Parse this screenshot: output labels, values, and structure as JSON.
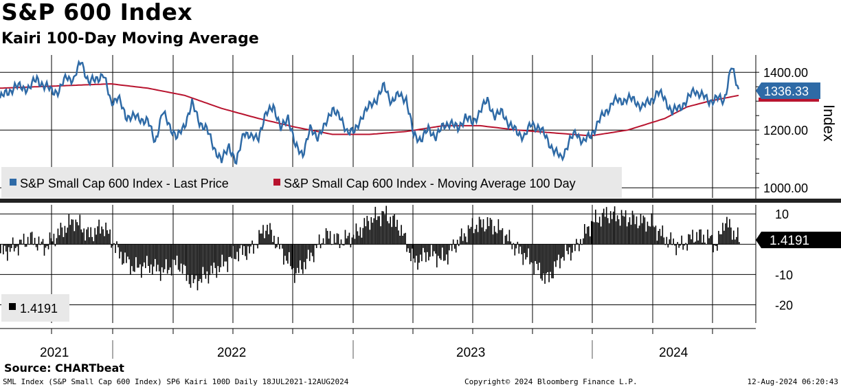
{
  "title": "S&P 600 Index",
  "subtitle": "Kairi 100-Day Moving Average",
  "colors": {
    "price": "#2e6aa6",
    "ma": "#b8132e",
    "kairi": "#000000",
    "grid": "#000000",
    "legend_bg": "#e8e8e8"
  },
  "chart_data": [
    {
      "type": "line",
      "panel": "upper",
      "ylabel": "Index",
      "ylim": [
        960,
        1460
      ],
      "ytick_labels": [
        "1400.00",
        "1200.00",
        "1000.00"
      ],
      "ytick_values": [
        1400,
        1200,
        1000
      ],
      "xlim": [
        "2021-07-18",
        "2024-08-12"
      ],
      "legend": [
        "S&P Small Cap 600 Index - Last Price",
        "S&P Small Cap 600 Index - Moving Average 100 Day"
      ],
      "last_price_label": "1336.33",
      "series": [
        {
          "name": "S&P Small Cap 600 Index - Last Price",
          "t": [
            0.0,
            0.02,
            0.04,
            0.05,
            0.06,
            0.08,
            0.09,
            0.1,
            0.11,
            0.12,
            0.13,
            0.14,
            0.15,
            0.16,
            0.17,
            0.19,
            0.2,
            0.21,
            0.22,
            0.24,
            0.25,
            0.26,
            0.27,
            0.28,
            0.29,
            0.3,
            0.31,
            0.32,
            0.33,
            0.34,
            0.35,
            0.36,
            0.37,
            0.38,
            0.39,
            0.4,
            0.41,
            0.42,
            0.43,
            0.44,
            0.45,
            0.46,
            0.47,
            0.48,
            0.49,
            0.5,
            0.51,
            0.52,
            0.53,
            0.54,
            0.55,
            0.56,
            0.57,
            0.58,
            0.59,
            0.6,
            0.61,
            0.62,
            0.63,
            0.64,
            0.65,
            0.66,
            0.67,
            0.68,
            0.69,
            0.7,
            0.71,
            0.72,
            0.73,
            0.74,
            0.75,
            0.76,
            0.77,
            0.78,
            0.79,
            0.8,
            0.81,
            0.82,
            0.83,
            0.84,
            0.85,
            0.86,
            0.87,
            0.88,
            0.89,
            0.9,
            0.91,
            0.92,
            0.93,
            0.94,
            0.95,
            0.96,
            0.97,
            0.98,
            0.99,
            1.0
          ],
          "values": [
            1310,
            1350,
            1345,
            1380,
            1350,
            1330,
            1390,
            1370,
            1445,
            1360,
            1380,
            1390,
            1300,
            1310,
            1250,
            1240,
            1230,
            1160,
            1260,
            1170,
            1220,
            1290,
            1230,
            1200,
            1140,
            1090,
            1150,
            1080,
            1200,
            1170,
            1180,
            1250,
            1290,
            1200,
            1250,
            1140,
            1120,
            1200,
            1180,
            1210,
            1280,
            1240,
            1200,
            1190,
            1250,
            1280,
            1310,
            1350,
            1300,
            1320,
            1310,
            1180,
            1170,
            1200,
            1180,
            1210,
            1230,
            1200,
            1250,
            1220,
            1270,
            1300,
            1250,
            1260,
            1220,
            1190,
            1180,
            1220,
            1210,
            1170,
            1130,
            1100,
            1160,
            1190,
            1160,
            1180,
            1230,
            1260,
            1300,
            1300,
            1310,
            1300,
            1280,
            1300,
            1330,
            1310,
            1260,
            1280,
            1300,
            1340,
            1320,
            1300,
            1310,
            1300,
            1420,
            1336.33
          ]
        },
        {
          "name": "S&P Small Cap 600 Index - Moving Average 100 Day",
          "t": [
            0.0,
            0.05,
            0.1,
            0.15,
            0.2,
            0.25,
            0.3,
            0.35,
            0.4,
            0.45,
            0.5,
            0.55,
            0.6,
            0.65,
            0.7,
            0.75,
            0.8,
            0.85,
            0.9,
            0.93,
            0.96,
            1.0
          ],
          "values": [
            1345,
            1350,
            1355,
            1360,
            1345,
            1320,
            1275,
            1240,
            1210,
            1185,
            1185,
            1195,
            1215,
            1215,
            1200,
            1190,
            1180,
            1200,
            1240,
            1280,
            1300,
            1320
          ]
        }
      ]
    },
    {
      "type": "bar",
      "panel": "lower",
      "ylim": [
        -26,
        13
      ],
      "ytick_labels": [
        "10",
        "-10",
        "-20"
      ],
      "ytick_values": [
        10,
        -10,
        -20
      ],
      "legend": [
        "1.4191"
      ],
      "last_value_label": "1.4191",
      "series": [
        {
          "name": "Kairi 100D",
          "t": [
            0.0,
            0.02,
            0.04,
            0.06,
            0.08,
            0.1,
            0.12,
            0.14,
            0.16,
            0.18,
            0.2,
            0.22,
            0.24,
            0.26,
            0.28,
            0.3,
            0.32,
            0.34,
            0.36,
            0.38,
            0.4,
            0.42,
            0.44,
            0.46,
            0.48,
            0.5,
            0.52,
            0.54,
            0.56,
            0.58,
            0.6,
            0.62,
            0.64,
            0.66,
            0.68,
            0.7,
            0.72,
            0.74,
            0.76,
            0.78,
            0.8,
            0.82,
            0.84,
            0.86,
            0.88,
            0.9,
            0.92,
            0.94,
            0.96,
            0.97,
            0.98,
            1.0
          ],
          "values": [
            -3,
            -1,
            2,
            -1,
            4,
            8,
            3,
            6,
            -3,
            -8,
            -7,
            -9,
            -6,
            -13,
            -10,
            -7,
            -3,
            -2,
            6,
            -2,
            -10,
            -4,
            3,
            1,
            3,
            8,
            10,
            6,
            -6,
            -3,
            -5,
            1,
            6,
            7,
            4,
            -2,
            -6,
            -12,
            -4,
            -1,
            7,
            10,
            9,
            8,
            7,
            2,
            -1,
            3,
            2,
            -1,
            8,
            1.4191
          ]
        }
      ]
    }
  ],
  "x_axis": {
    "years": [
      "2021",
      "2022",
      "2023",
      "2024"
    ]
  },
  "source": "Source: CHARTbeat",
  "footer": {
    "left": "SML Index (S&P Small Cap 600 Index) SP6 Kairi 100D  Daily 18JUL2021-12AUG2024",
    "middle": "Copyright© 2024 Bloomberg Finance L.P.",
    "right": "12-Aug-2024 06:20:43"
  }
}
